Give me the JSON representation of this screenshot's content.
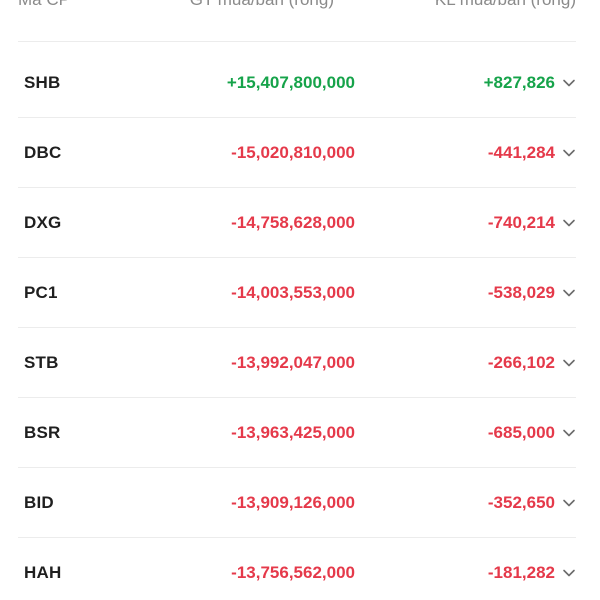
{
  "header": {
    "code_label": "Mã CP",
    "value_label": "GT mua/bán (ròng)",
    "volume_label": "KL mua/bán (ròng)"
  },
  "colors": {
    "positive": "#16a34a",
    "negative": "#e5394a",
    "chevron": "#6b6b6b"
  },
  "rows": [
    {
      "code": "SHB",
      "value": "+15,407,800,000",
      "volume": "+827,826",
      "trend": "positive"
    },
    {
      "code": "DBC",
      "value": "-15,020,810,000",
      "volume": "-441,284",
      "trend": "negative"
    },
    {
      "code": "DXG",
      "value": "-14,758,628,000",
      "volume": "-740,214",
      "trend": "negative"
    },
    {
      "code": "PC1",
      "value": "-14,003,553,000",
      "volume": "-538,029",
      "trend": "negative"
    },
    {
      "code": "STB",
      "value": "-13,992,047,000",
      "volume": "-266,102",
      "trend": "negative"
    },
    {
      "code": "BSR",
      "value": "-13,963,425,000",
      "volume": "-685,000",
      "trend": "negative"
    },
    {
      "code": "BID",
      "value": "-13,909,126,000",
      "volume": "-352,650",
      "trend": "negative"
    },
    {
      "code": "HAH",
      "value": "-13,756,562,000",
      "volume": "-181,282",
      "trend": "negative"
    }
  ],
  "row_icon": "chevron-down-icon"
}
